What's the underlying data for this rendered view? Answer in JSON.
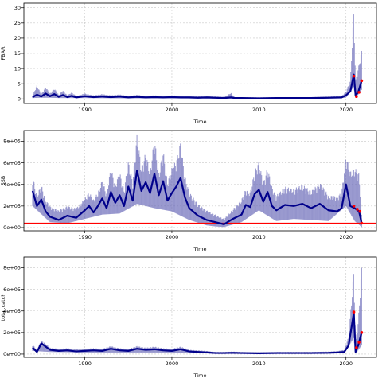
{
  "chart_data": [
    {
      "type": "area",
      "ylabel": "FBAR",
      "xlabel": "Time",
      "xlim": [
        1983,
        2023.5
      ],
      "ylim": [
        -1.5,
        31.5
      ],
      "xticks": [
        1990,
        2000,
        2010,
        2020
      ],
      "yticks": [
        0,
        5,
        10,
        15,
        20,
        25,
        30
      ],
      "ytick_labels": [
        "0",
        "5",
        "10",
        "15",
        "20",
        "25",
        "30"
      ],
      "grid": true,
      "series": [
        {
          "role": "median",
          "color": "#00008B",
          "x": [
            1984,
            1984.5,
            1985,
            1985.5,
            1986,
            1986.5,
            1987,
            1987.5,
            1988,
            1988.5,
            1989,
            1990,
            1991,
            1992,
            1993,
            1994,
            1995,
            1996,
            1997,
            1998,
            1999,
            2000,
            2001,
            2002,
            2003,
            2004,
            2005,
            2006,
            2006.8,
            2007.2,
            2008,
            2010,
            2012,
            2014,
            2016,
            2018,
            2019.5,
            2020,
            2020.5,
            2020.9,
            2021.1,
            2021.4,
            2021.8
          ],
          "values": [
            0.6,
            1.4,
            0.8,
            1.8,
            0.9,
            1.6,
            0.7,
            1.3,
            0.6,
            1.0,
            0.5,
            0.9,
            0.6,
            0.8,
            0.6,
            0.8,
            0.5,
            0.7,
            0.5,
            0.6,
            0.5,
            0.6,
            0.5,
            0.5,
            0.4,
            0.5,
            0.4,
            0.3,
            0.5,
            0.3,
            0.3,
            0.2,
            0.3,
            0.3,
            0.3,
            0.4,
            0.5,
            1.2,
            2.5,
            8.0,
            1.2,
            2.2,
            6.0
          ]
        },
        {
          "role": "upper",
          "x": [
            1984,
            1984.5,
            1985,
            1985.5,
            1986,
            1986.5,
            1987,
            1987.5,
            1988,
            1988.5,
            1989,
            1990,
            1991,
            1992,
            1993,
            1994,
            1995,
            1996,
            1997,
            1998,
            1999,
            2000,
            2001,
            2002,
            2003,
            2004,
            2005,
            2006,
            2006.8,
            2007.2,
            2008,
            2010,
            2012,
            2014,
            2016,
            2018,
            2019.5,
            2020,
            2020.5,
            2020.9,
            2021.1,
            2021.4,
            2021.8
          ],
          "values": [
            1.2,
            4.5,
            1.6,
            4.0,
            1.8,
            3.5,
            1.4,
            2.8,
            1.2,
            2.2,
            1.0,
            1.8,
            1.2,
            1.6,
            1.2,
            1.5,
            1.0,
            1.4,
            1.0,
            1.2,
            1.0,
            1.2,
            1.0,
            1.0,
            0.9,
            1.0,
            0.8,
            0.7,
            2.0,
            0.6,
            0.6,
            0.5,
            0.6,
            0.6,
            0.6,
            0.8,
            1.0,
            2.5,
            6.0,
            29.5,
            6.0,
            10.0,
            16.0
          ]
        },
        {
          "role": "lower",
          "x": [
            1984,
            1985,
            1986,
            1987,
            1988,
            1990,
            1995,
            2000,
            2005,
            2010,
            2015,
            2020,
            2020.9,
            2021.1,
            2021.8
          ],
          "values": [
            0.3,
            0.4,
            0.4,
            0.3,
            0.3,
            0.3,
            0.2,
            0.2,
            0.1,
            0.1,
            0.1,
            0.4,
            4.0,
            0.3,
            3.0
          ]
        }
      ],
      "points": [
        {
          "x": 2020.9,
          "y": 7.5
        },
        {
          "x": 2021.2,
          "y": 0.8
        },
        {
          "x": 2021.5,
          "y": 2.2
        },
        {
          "x": 2021.8,
          "y": 6.0
        }
      ]
    },
    {
      "type": "area",
      "ylabel": "SSB",
      "xlabel": "Time",
      "xlim": [
        1983,
        2023.5
      ],
      "ylim": [
        -30000,
        900000
      ],
      "xticks": [
        1990,
        2000,
        2010,
        2020
      ],
      "yticks": [
        0,
        200000,
        400000,
        600000,
        800000
      ],
      "ytick_labels": [
        "0e+00",
        "2e+05",
        "4e+05",
        "6e+05",
        "8e+05"
      ],
      "grid": true,
      "hline": {
        "y": 40000,
        "color": "#FF0000"
      },
      "series": [
        {
          "role": "median",
          "color": "#00008B",
          "x": [
            1984,
            1984.5,
            1985,
            1985.5,
            1986,
            1987,
            1988,
            1989,
            1990,
            1990.5,
            1991,
            1991.5,
            1992,
            1992.5,
            1993,
            1993.5,
            1994,
            1994.5,
            1995,
            1995.5,
            1996,
            1996.5,
            1997,
            1997.5,
            1998,
            1998.5,
            1999,
            1999.5,
            2000,
            2000.5,
            2001,
            2001.5,
            2002,
            2003,
            2004,
            2005,
            2006,
            2007,
            2008,
            2008.5,
            2009,
            2009.5,
            2010,
            2010.5,
            2011,
            2011.5,
            2012,
            2013,
            2014,
            2015,
            2016,
            2017,
            2018,
            2019,
            2019.5,
            2020,
            2020.5,
            2021,
            2021.5,
            2021.8
          ],
          "values": [
            340000,
            200000,
            260000,
            150000,
            100000,
            70000,
            110000,
            90000,
            160000,
            200000,
            140000,
            200000,
            270000,
            180000,
            330000,
            230000,
            300000,
            200000,
            380000,
            250000,
            530000,
            340000,
            420000,
            320000,
            500000,
            300000,
            430000,
            250000,
            320000,
            380000,
            460000,
            280000,
            180000,
            110000,
            70000,
            50000,
            30000,
            80000,
            120000,
            210000,
            190000,
            310000,
            350000,
            240000,
            330000,
            200000,
            160000,
            210000,
            200000,
            220000,
            180000,
            220000,
            160000,
            150000,
            180000,
            400000,
            200000,
            180000,
            150000,
            40000
          ]
        },
        {
          "role": "upper",
          "x": [
            1984,
            1984.5,
            1985,
            1985.5,
            1986,
            1987,
            1988,
            1989,
            1990,
            1990.5,
            1991,
            1991.5,
            1992,
            1992.5,
            1993,
            1993.5,
            1994,
            1994.5,
            1995,
            1995.5,
            1996,
            1996.5,
            1997,
            1997.5,
            1998,
            1998.5,
            1999,
            1999.5,
            2000,
            2000.5,
            2001,
            2001.5,
            2002,
            2003,
            2004,
            2005,
            2006,
            2007,
            2008,
            2008.5,
            2009,
            2009.5,
            2010,
            2010.5,
            2011,
            2011.5,
            2012,
            2013,
            2014,
            2015,
            2016,
            2017,
            2018,
            2019,
            2019.5,
            2020,
            2020.5,
            2021,
            2021.5,
            2021.8
          ],
          "values": [
            480000,
            300000,
            400000,
            260000,
            200000,
            160000,
            200000,
            180000,
            270000,
            330000,
            260000,
            330000,
            440000,
            320000,
            560000,
            400000,
            520000,
            350000,
            620000,
            430000,
            870000,
            560000,
            700000,
            520000,
            840000,
            500000,
            720000,
            420000,
            560000,
            620000,
            800000,
            480000,
            330000,
            220000,
            160000,
            120000,
            80000,
            170000,
            260000,
            360000,
            330000,
            520000,
            620000,
            420000,
            560000,
            380000,
            300000,
            380000,
            360000,
            400000,
            340000,
            420000,
            300000,
            290000,
            330000,
            680000,
            520000,
            560000,
            500000,
            120000
          ]
        },
        {
          "role": "lower",
          "x": [
            1984,
            1986,
            1988,
            1990,
            1992,
            1994,
            1996,
            1998,
            2000,
            2002,
            2004,
            2005,
            2006,
            2008,
            2010,
            2012,
            2014,
            2016,
            2018,
            2020,
            2021,
            2021.8
          ],
          "values": [
            200000,
            50000,
            40000,
            80000,
            120000,
            130000,
            220000,
            180000,
            150000,
            70000,
            20000,
            10000,
            5000,
            50000,
            160000,
            60000,
            80000,
            70000,
            60000,
            200000,
            60000,
            5000
          ]
        }
      ],
      "points": [
        {
          "x": 2020.9,
          "y": 200000
        },
        {
          "x": 2021.3,
          "y": 170000
        },
        {
          "x": 2021.6,
          "y": 150000
        },
        {
          "x": 2021.8,
          "y": 40000
        }
      ]
    },
    {
      "type": "area",
      "ylabel": "total.catch",
      "xlabel": "Time",
      "xlim": [
        1983,
        2023.5
      ],
      "ylim": [
        -30000,
        900000
      ],
      "xticks": [
        1990,
        2000,
        2010,
        2020
      ],
      "yticks": [
        0,
        200000,
        400000,
        600000,
        800000
      ],
      "ytick_labels": [
        "0e+00",
        "2e+05",
        "4e+05",
        "6e+05",
        "8e+05"
      ],
      "grid": true,
      "series": [
        {
          "role": "median",
          "color": "#00008B",
          "x": [
            1984,
            1984.5,
            1985,
            1985.5,
            1986,
            1987,
            1988,
            1989,
            1990,
            1991,
            1992,
            1993,
            1994,
            1995,
            1996,
            1997,
            1998,
            1999,
            2000,
            2001,
            2002,
            2003,
            2004,
            2005,
            2006,
            2007,
            2008,
            2010,
            2012,
            2014,
            2016,
            2018,
            2019,
            2019.8,
            2020.3,
            2020.9,
            2021.1,
            2021.4,
            2021.8
          ],
          "values": [
            60000,
            20000,
            100000,
            70000,
            40000,
            30000,
            35000,
            25000,
            30000,
            35000,
            30000,
            50000,
            35000,
            30000,
            50000,
            40000,
            45000,
            35000,
            30000,
            45000,
            25000,
            20000,
            15000,
            10000,
            10000,
            12000,
            10000,
            8000,
            10000,
            10000,
            10000,
            12000,
            15000,
            20000,
            80000,
            380000,
            20000,
            80000,
            200000
          ]
        },
        {
          "role": "upper",
          "x": [
            1984,
            1984.5,
            1985,
            1985.5,
            1986,
            1987,
            1988,
            1989,
            1990,
            1991,
            1992,
            1993,
            1994,
            1995,
            1996,
            1997,
            1998,
            1999,
            2000,
            2001,
            2002,
            2003,
            2004,
            2005,
            2006,
            2007,
            2008,
            2010,
            2012,
            2014,
            2016,
            2018,
            2019,
            2019.8,
            2020.3,
            2020.9,
            2021.1,
            2021.4,
            2021.8
          ],
          "values": [
            90000,
            40000,
            130000,
            100000,
            60000,
            50000,
            55000,
            45000,
            50000,
            55000,
            50000,
            75000,
            55000,
            50000,
            75000,
            60000,
            70000,
            55000,
            50000,
            70000,
            40000,
            35000,
            30000,
            20000,
            20000,
            24000,
            20000,
            16000,
            20000,
            20000,
            20000,
            24000,
            28000,
            40000,
            160000,
            780000,
            120000,
            300000,
            810000
          ]
        },
        {
          "role": "lower",
          "x": [
            1984,
            1986,
            1990,
            1995,
            2000,
            2005,
            2010,
            2015,
            2019.8,
            2020.9,
            2021.1,
            2021.8
          ],
          "values": [
            30000,
            20000,
            15000,
            15000,
            15000,
            5000,
            3000,
            4000,
            10000,
            150000,
            5000,
            80000
          ]
        }
      ],
      "points": [
        {
          "x": 2020.9,
          "y": 390000
        },
        {
          "x": 2021.2,
          "y": 60000
        },
        {
          "x": 2021.5,
          "y": 110000
        },
        {
          "x": 2021.8,
          "y": 200000
        }
      ]
    }
  ]
}
